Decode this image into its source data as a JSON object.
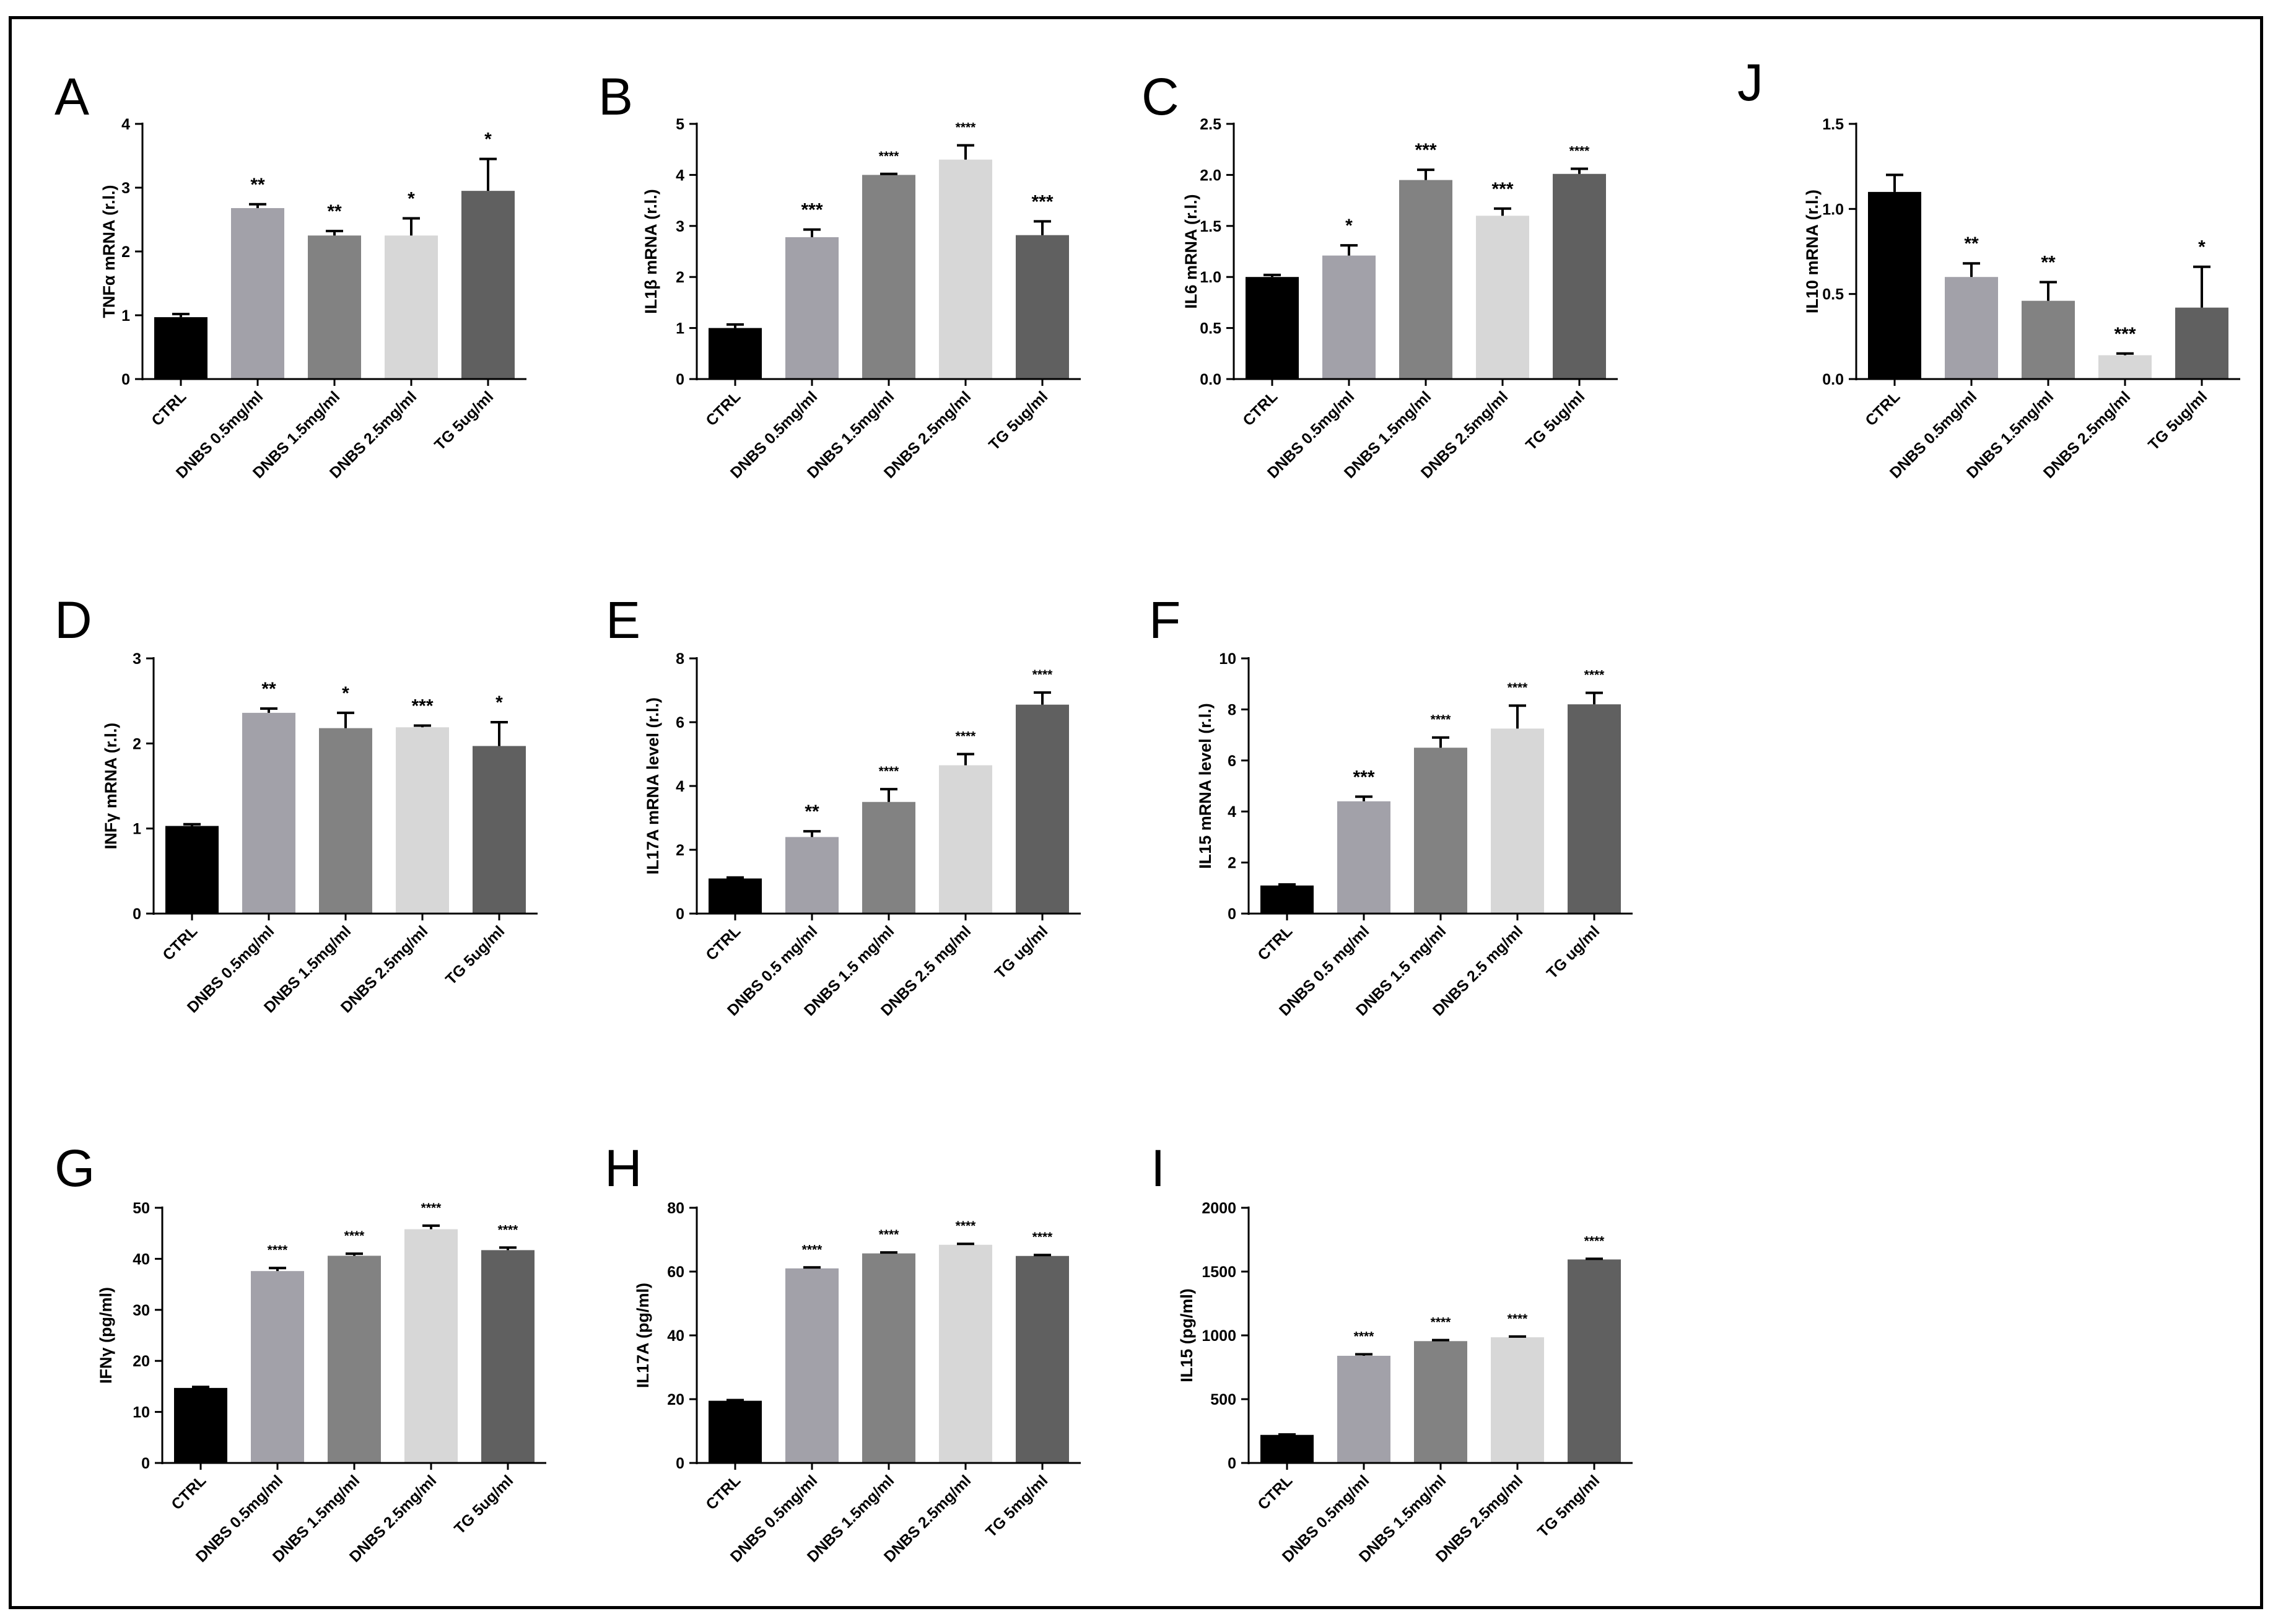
{
  "figure": {
    "frame_color": "#000000"
  },
  "chart_data": [
    {
      "panel": "A",
      "type": "bar",
      "ylabel": "TNFα mRNA (r.l.)",
      "ylim": [
        0,
        4
      ],
      "yticks": [
        "0",
        "1",
        "2",
        "3",
        "4"
      ],
      "categories": [
        "CTRL",
        "DNBS 0.5mg/ml",
        "DNBS 1.5mg/ml",
        "DNBS 2.5mg/ml",
        "TG 5ug/ml"
      ],
      "values": [
        0.97,
        2.68,
        2.25,
        2.25,
        2.95
      ],
      "errors": [
        0.05,
        0.06,
        0.07,
        0.27,
        0.5
      ],
      "significance": [
        "",
        "**",
        "**",
        "*",
        "*"
      ]
    },
    {
      "panel": "B",
      "type": "bar",
      "ylabel": "IL1β mRNA (r.l.)",
      "ylim": [
        0,
        5
      ],
      "yticks": [
        "0",
        "1",
        "2",
        "3",
        "4",
        "5"
      ],
      "categories": [
        "CTRL",
        "DNBS 0.5mg/ml",
        "DNBS 1.5mg/ml",
        "DNBS 2.5mg/ml",
        "TG 5ug/ml"
      ],
      "values": [
        1.0,
        2.78,
        4.0,
        4.3,
        2.82
      ],
      "errors": [
        0.07,
        0.15,
        0.02,
        0.28,
        0.27
      ],
      "significance": [
        "",
        "***",
        "****",
        "****",
        "***"
      ]
    },
    {
      "panel": "C",
      "type": "bar",
      "ylabel": "IL6 mRNA (r.l.)",
      "ylim": [
        0,
        2.5
      ],
      "yticks": [
        "0.0",
        "0.5",
        "1.0",
        "1.5",
        "2.0",
        "2.5"
      ],
      "categories": [
        "CTRL",
        "DNBS 0.5mg/ml",
        "DNBS 1.5mg/ml",
        "DNBS 2.5mg/ml",
        "TG 5ug/ml"
      ],
      "values": [
        1.0,
        1.21,
        1.95,
        1.6,
        2.01
      ],
      "errors": [
        0.02,
        0.1,
        0.1,
        0.07,
        0.05
      ],
      "significance": [
        "",
        "*",
        "***",
        "***",
        "****"
      ]
    },
    {
      "panel": "J",
      "type": "bar",
      "ylabel": "IL10 mRNA (r.l.)",
      "ylim": [
        0,
        1.5
      ],
      "yticks": [
        "0.0",
        "0.5",
        "1.0",
        "1.5"
      ],
      "categories": [
        "CTRL",
        "DNBS 0.5mg/ml",
        "DNBS 1.5mg/ml",
        "DNBS 2.5mg/ml",
        "TG 5ug/ml"
      ],
      "values": [
        1.1,
        0.6,
        0.46,
        0.14,
        0.42
      ],
      "errors": [
        0.1,
        0.08,
        0.11,
        0.01,
        0.24
      ],
      "significance": [
        "",
        "**",
        "**",
        "***",
        "*"
      ]
    },
    {
      "panel": "D",
      "type": "bar",
      "ylabel": "INFγ mRNA (r.l.)",
      "ylim": [
        0,
        3
      ],
      "yticks": [
        "0",
        "1",
        "2",
        "3"
      ],
      "categories": [
        "CTRL",
        "DNBS 0.5mg/ml",
        "DNBS 1.5mg/ml",
        "DNBS 2.5mg/ml",
        "TG 5ug/ml"
      ],
      "values": [
        1.03,
        2.36,
        2.18,
        2.19,
        1.97
      ],
      "errors": [
        0.02,
        0.05,
        0.18,
        0.02,
        0.28
      ],
      "significance": [
        "",
        "**",
        "*",
        "***",
        "*"
      ]
    },
    {
      "panel": "E",
      "type": "bar",
      "ylabel": "IL17A mRNA level (r.l.)",
      "ylim": [
        0,
        8
      ],
      "yticks": [
        "0",
        "2",
        "4",
        "6",
        "8"
      ],
      "categories": [
        "CTRL",
        "DNBS 0.5 mg/ml",
        "DNBS 1.5 mg/ml",
        "DNBS 2.5 mg/ml",
        "TG ug/ml"
      ],
      "values": [
        1.1,
        2.4,
        3.5,
        4.65,
        6.55
      ],
      "errors": [
        0.03,
        0.18,
        0.4,
        0.35,
        0.38
      ],
      "significance": [
        "",
        "**",
        "****",
        "****",
        "****"
      ]
    },
    {
      "panel": "F",
      "type": "bar",
      "ylabel": "IL15 mRNA level (r.l.)",
      "ylim": [
        0,
        10
      ],
      "yticks": [
        "0",
        "2",
        "4",
        "6",
        "8",
        "10"
      ],
      "categories": [
        "CTRL",
        "DNBS 0.5 mg/ml",
        "DNBS 1.5 mg/ml",
        "DNBS 2.5 mg/ml",
        "TG ug/ml"
      ],
      "values": [
        1.1,
        4.4,
        6.5,
        7.25,
        8.2
      ],
      "errors": [
        0.04,
        0.18,
        0.4,
        0.9,
        0.45
      ],
      "significance": [
        "",
        "***",
        "****",
        "****",
        "****"
      ]
    },
    {
      "panel": "G",
      "type": "bar",
      "ylabel": "IFNγ (pg/ml)",
      "ylim": [
        0,
        50
      ],
      "yticks": [
        "0",
        "10",
        "20",
        "30",
        "40",
        "50"
      ],
      "categories": [
        "CTRL",
        "DNBS 0.5mg/ml",
        "DNBS 1.5mg/ml",
        "DNBS 2.5mg/ml",
        "TG 5ug/ml"
      ],
      "values": [
        14.7,
        37.6,
        40.6,
        45.8,
        41.7
      ],
      "errors": [
        0.2,
        0.6,
        0.4,
        0.7,
        0.5
      ],
      "significance": [
        "",
        "****",
        "****",
        "****",
        "****"
      ]
    },
    {
      "panel": "H",
      "type": "bar",
      "ylabel": "IL17A (pg/ml)",
      "ylim": [
        0,
        80
      ],
      "yticks": [
        "0",
        "20",
        "40",
        "60",
        "80"
      ],
      "categories": [
        "CTRL",
        "DNBS 0.5mg/ml",
        "DNBS 1.5mg/ml",
        "DNBS 2.5mg/ml",
        "TG 5mg/ml"
      ],
      "values": [
        19.5,
        61.0,
        65.7,
        68.4,
        64.9
      ],
      "errors": [
        0.2,
        0.3,
        0.3,
        0.3,
        0.3
      ],
      "significance": [
        "",
        "****",
        "****",
        "****",
        "****"
      ]
    },
    {
      "panel": "I",
      "type": "bar",
      "ylabel": "IL15 (pg/ml)",
      "ylim": [
        0,
        2000
      ],
      "yticks": [
        "0",
        "500",
        "1000",
        "1500",
        "2000"
      ],
      "categories": [
        "CTRL",
        "DNBS 0.5mg/ml",
        "DNBS 1.5mg/ml",
        "DNBS 2.5mg/ml",
        "TG 5mg/ml"
      ],
      "values": [
        220,
        840,
        955,
        985,
        1595
      ],
      "errors": [
        3,
        12,
        8,
        6,
        5
      ],
      "significance": [
        "",
        "****",
        "****",
        "****",
        "****"
      ]
    }
  ],
  "bar_colors": [
    "#000000",
    "#a2a1a9",
    "#828282",
    "#d7d7d7",
    "#606060"
  ]
}
